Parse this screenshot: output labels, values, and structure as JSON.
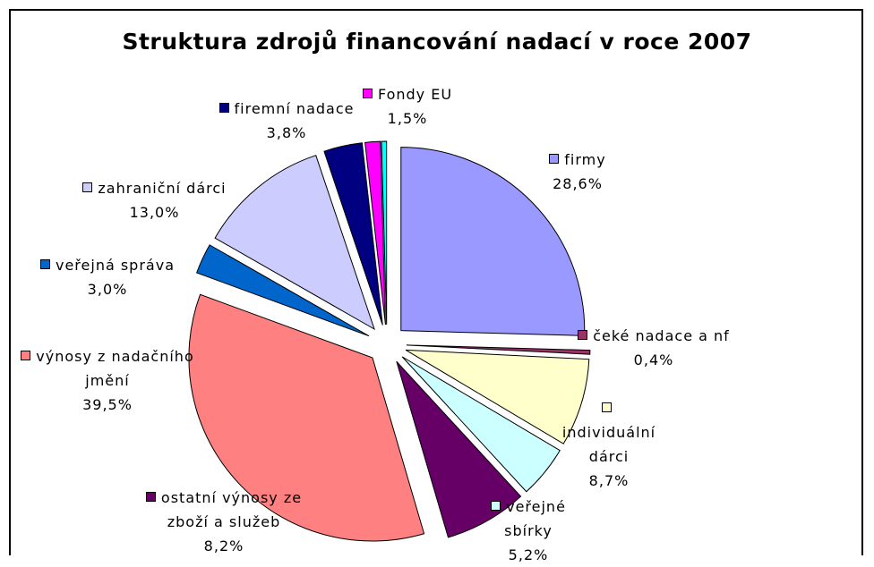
{
  "chart_data": {
    "type": "pie",
    "title": "Struktura zdrojů financování nadací v roce 2007",
    "categories": [
      "firmy",
      "čeké nadace a nf",
      "individuální dárci",
      "veřejné sbírky",
      "ostatní výnosy ze zboží a služeb",
      "výnosy z nadačního jmění",
      "veřejná správa",
      "zahraniční dárci",
      "firemní nadace",
      "Fondy EU",
      null
    ],
    "values": [
      28.6,
      0.4,
      8.7,
      5.2,
      8.2,
      39.5,
      3.0,
      13.0,
      3.8,
      1.5,
      0.5
    ],
    "value_labels": [
      "28,6%",
      "0,4%",
      "8,7%",
      "5,2%",
      "8,2%",
      "39,5%",
      "3,0%",
      "13,0%",
      "3,8%",
      "1,5%",
      null
    ],
    "colors": [
      "#9999ff",
      "#993366",
      "#ffffcc",
      "#ccffff",
      "#660066",
      "#ff8080",
      "#0066cc",
      "#ccccff",
      "#000080",
      "#ff00ff",
      "#00ffff"
    ]
  }
}
